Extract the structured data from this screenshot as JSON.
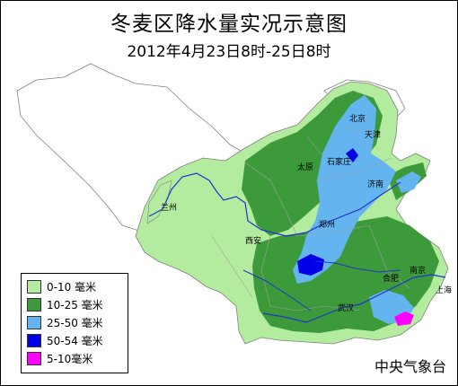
{
  "map": {
    "title": "冬麦区降水量实况示意图",
    "subtitle": "2012年4月23日8时-25日8时",
    "source": "中央气象台",
    "cities": [
      "北京",
      "天津",
      "石家庄",
      "太原",
      "济南",
      "郑州",
      "西安",
      "兰州",
      "合肥",
      "南京",
      "上海",
      "武汉"
    ],
    "legend": [
      {
        "label": "0-10 毫米",
        "color": "#b3ec9f"
      },
      {
        "label": "10-25 毫米",
        "color": "#3c9a3a"
      },
      {
        "label": "25-50 毫米",
        "color": "#64b4f0"
      },
      {
        "label": "50-54 毫米",
        "color": "#0000e6"
      },
      {
        "label": "5-10毫米",
        "color": "#ff00ff"
      }
    ],
    "colors": {
      "boundary": "#808080",
      "river": "#2233cc",
      "province": "#a0a0a0"
    }
  }
}
